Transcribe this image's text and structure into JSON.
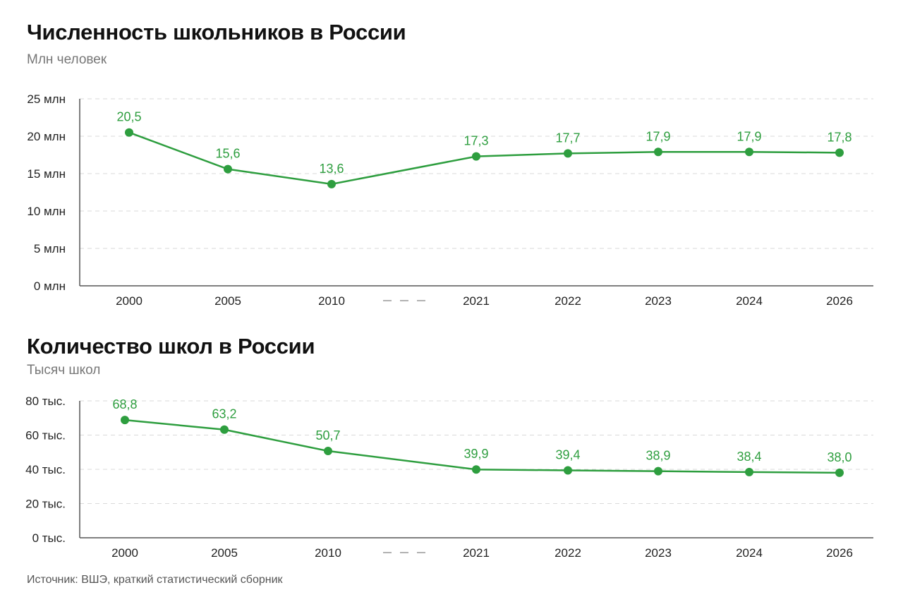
{
  "header1": {
    "title": "Численность школьников в России",
    "subtitle": "Млн человек"
  },
  "header2": {
    "title": "Количество школ в России",
    "subtitle": "Тысяч школ"
  },
  "footer": {
    "source": "Источник: ВШЭ, краткий статистический сборник"
  },
  "colors": {
    "series": "#2e9e3f",
    "grid": "#d9d9d9",
    "axis": "#555555"
  },
  "chart_data": [
    {
      "type": "line",
      "title": "Численность школьников в России",
      "ylabel": "Млн человек",
      "categories": [
        "2000",
        "2005",
        "2010",
        "2021",
        "2022",
        "2023",
        "2024",
        "2026"
      ],
      "values": [
        20.5,
        15.6,
        13.6,
        17.3,
        17.7,
        17.9,
        17.9,
        17.8
      ],
      "value_labels": [
        "20,5",
        "15,6",
        "13,6",
        "17,3",
        "17,7",
        "17,9",
        "17,9",
        "17,8"
      ],
      "yticks": [
        0,
        5,
        10,
        15,
        20,
        25
      ],
      "ytick_labels": [
        "0 млн",
        "5 млн",
        "10 млн",
        "15 млн",
        "20 млн",
        "25 млн"
      ],
      "ylim": [
        0,
        25
      ],
      "grid": true,
      "axis_break_after": "2010"
    },
    {
      "type": "line",
      "title": "Количество школ в России",
      "ylabel": "Тысяч школ",
      "categories": [
        "2000",
        "2005",
        "2010",
        "2021",
        "2022",
        "2023",
        "2024",
        "2026"
      ],
      "values": [
        68.8,
        63.2,
        50.7,
        39.9,
        39.4,
        38.9,
        38.4,
        38.0
      ],
      "value_labels": [
        "68,8",
        "63,2",
        "50,7",
        "39,9",
        "39,4",
        "38,9",
        "38,4",
        "38,0"
      ],
      "yticks": [
        0,
        20,
        40,
        60,
        80
      ],
      "ytick_labels": [
        "0 тыс.",
        "20 тыс.",
        "40 тыс.",
        "60 тыс.",
        "80 тыс."
      ],
      "ylim": [
        0,
        80
      ],
      "grid": true,
      "axis_break_after": "2010"
    }
  ]
}
